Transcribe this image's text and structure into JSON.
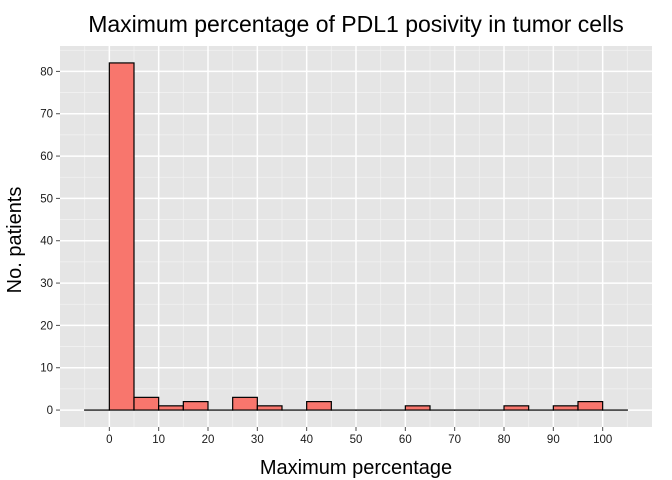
{
  "chart_data": {
    "type": "bar",
    "subtype": "histogram",
    "title": "Maximum percentage of PDL1 posivity in tumor cells",
    "xlabel": "Maximum percentage",
    "ylabel": "No. patients",
    "bin_width": 5,
    "bins": [
      {
        "start": -5,
        "end": 0,
        "count": 0
      },
      {
        "start": 0,
        "end": 5,
        "count": 82
      },
      {
        "start": 5,
        "end": 10,
        "count": 3
      },
      {
        "start": 10,
        "end": 15,
        "count": 1
      },
      {
        "start": 15,
        "end": 20,
        "count": 2
      },
      {
        "start": 20,
        "end": 25,
        "count": 0
      },
      {
        "start": 25,
        "end": 30,
        "count": 3
      },
      {
        "start": 30,
        "end": 35,
        "count": 1
      },
      {
        "start": 35,
        "end": 40,
        "count": 0
      },
      {
        "start": 40,
        "end": 45,
        "count": 2
      },
      {
        "start": 45,
        "end": 50,
        "count": 0
      },
      {
        "start": 50,
        "end": 55,
        "count": 0
      },
      {
        "start": 55,
        "end": 60,
        "count": 0
      },
      {
        "start": 60,
        "end": 65,
        "count": 1
      },
      {
        "start": 65,
        "end": 70,
        "count": 0
      },
      {
        "start": 70,
        "end": 75,
        "count": 0
      },
      {
        "start": 75,
        "end": 80,
        "count": 0
      },
      {
        "start": 80,
        "end": 85,
        "count": 1
      },
      {
        "start": 85,
        "end": 90,
        "count": 0
      },
      {
        "start": 90,
        "end": 95,
        "count": 1
      },
      {
        "start": 95,
        "end": 100,
        "count": 2
      },
      {
        "start": 100,
        "end": 105,
        "count": 0
      }
    ],
    "xlim": [
      -10,
      110
    ],
    "ylim": [
      -4,
      86
    ],
    "x_ticks": [
      0,
      10,
      20,
      30,
      40,
      50,
      60,
      70,
      80,
      90,
      100
    ],
    "y_ticks": [
      0,
      10,
      20,
      30,
      40,
      50,
      60,
      70,
      80
    ],
    "grid": true,
    "legend": "none",
    "colors": {
      "bar_fill": "#f8766d",
      "bar_stroke": "#000000",
      "panel_background": "#e5e5e5",
      "grid_major": "#ffffff",
      "grid_minor": "#f2f2f2"
    }
  }
}
